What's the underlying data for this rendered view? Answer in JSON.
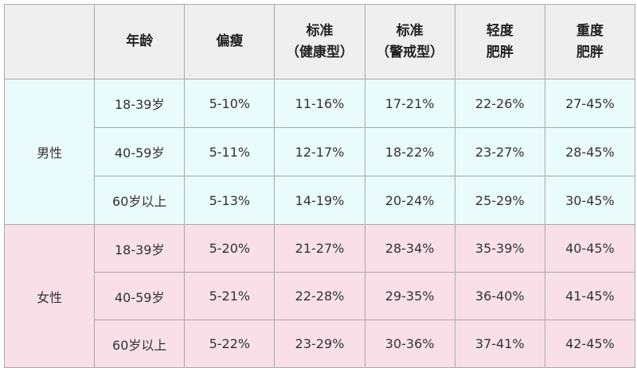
{
  "headers": [
    "",
    "年龄",
    "偏瘦",
    "标准\n（健康型）",
    "标准\n（警戒型）",
    "轻度\n肥胖",
    "重度\n肥胖"
  ],
  "header_lines": [
    [
      ""
    ],
    [
      "年龄"
    ],
    [
      "偏瘦"
    ],
    [
      "标准",
      "（健康型）"
    ],
    [
      "标准",
      "（警戒型）"
    ],
    [
      "轻度",
      "肥胖"
    ],
    [
      "重度",
      "肥胖"
    ]
  ],
  "groups": [
    {
      "label": "男性",
      "color": "#e9fbfb",
      "rows": [
        [
          "18-39岁",
          "5-10%",
          "11-16%",
          "17-21%",
          "22-26%",
          "27-45%"
        ],
        [
          "40-59岁",
          "5-11%",
          "12-17%",
          "18-22%",
          "23-27%",
          "28-45%"
        ],
        [
          "60岁以上",
          "5-13%",
          "14-19%",
          "20-24%",
          "25-29%",
          "30-45%"
        ]
      ]
    },
    {
      "label": "女性",
      "color": "#f8dfe8",
      "rows": [
        [
          "18-39岁",
          "5-20%",
          "21-27%",
          "28-34%",
          "35-39%",
          "40-45%"
        ],
        [
          "40-59岁",
          "5-21%",
          "22-28%",
          "29-35%",
          "36-40%",
          "41-45%"
        ],
        [
          "60岁以上",
          "5-22%",
          "23-29%",
          "30-36%",
          "37-41%",
          "42-45%"
        ]
      ]
    }
  ],
  "header_color": "#efefef"
}
